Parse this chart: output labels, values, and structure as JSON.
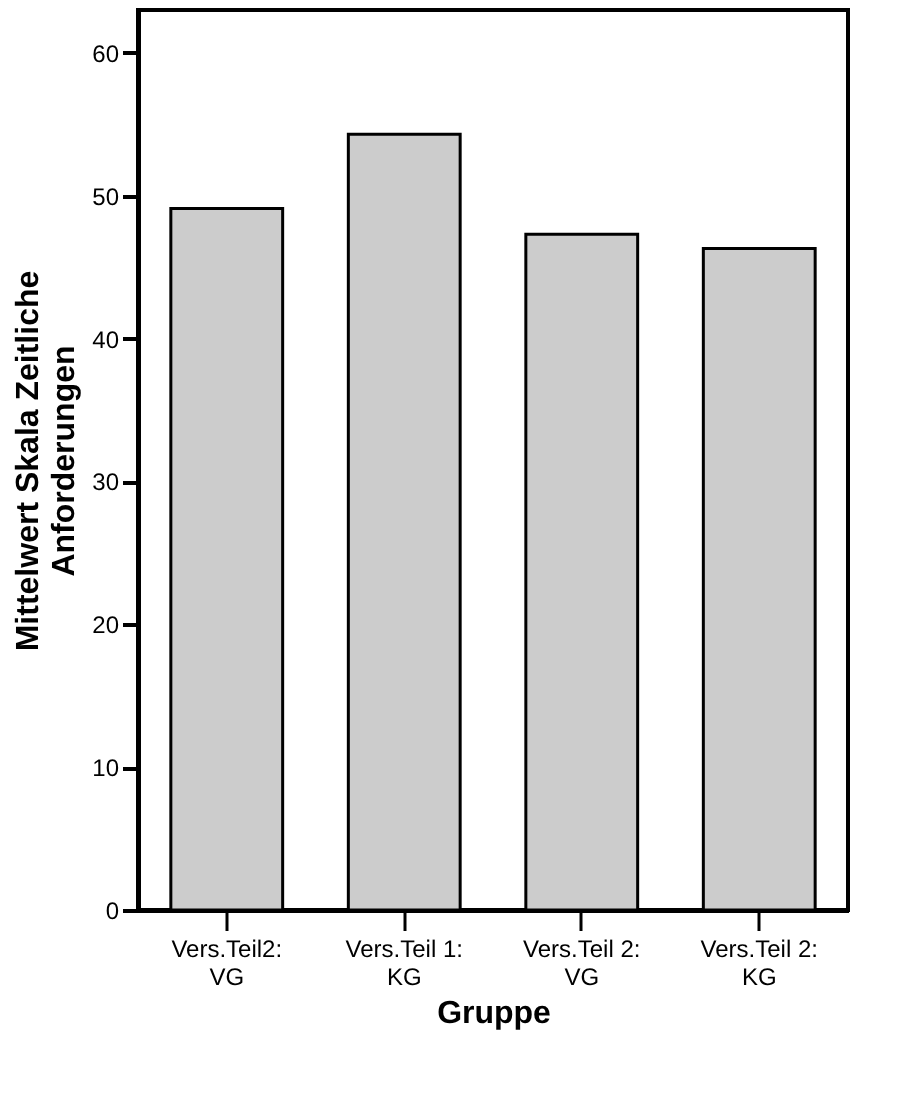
{
  "chart_data": {
    "type": "bar",
    "xlabel": "Gruppe",
    "ylabel": "Mittelwert Skala Zeitliche Anforderungen",
    "categories": [
      "Vers.Teil2: VG",
      "Vers.Teil 1: KG",
      "Vers.Teil 2: VG",
      "Vers.Teil 2: KG"
    ],
    "values": [
      49.1,
      54.3,
      47.3,
      46.3
    ],
    "color": "#cccccc",
    "ylim": [
      0,
      63
    ],
    "yticks": [
      0,
      10,
      20,
      30,
      40,
      50,
      60
    ],
    "grid": false
  }
}
